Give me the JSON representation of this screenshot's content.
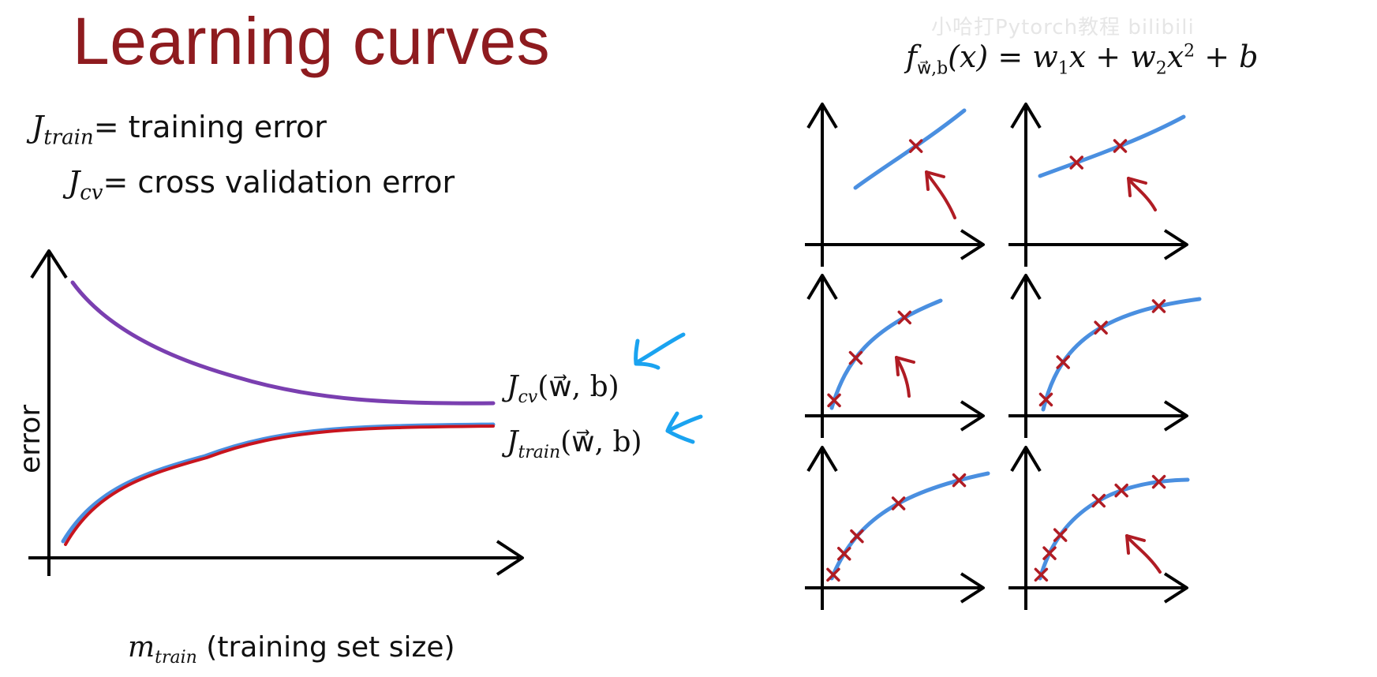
{
  "title": "Learning curves",
  "definitions": {
    "train_symbol": "J",
    "train_sub": "train",
    "train_text": "= training error",
    "cv_symbol": "J",
    "cv_sub": "cv",
    "cv_text": "= cross validation error"
  },
  "axes": {
    "y_label": "error",
    "x_symbol": "m",
    "x_sub": "train",
    "x_text": "(training set size)"
  },
  "curve_labels": {
    "cv_sub": "cv",
    "cv_args": "(w⃗, b)",
    "train_sub": "train",
    "train_args": "(w⃗, b)"
  },
  "formula": {
    "lhs_f": "f",
    "lhs_sub": "w⃗,b",
    "text": "(x) = w",
    "w1_sub": "1",
    "mid": "x + w",
    "w2_sub": "2",
    "x2": "x",
    "pow": "2",
    "tail": " + b"
  },
  "watermark": "小哈打Pytorch教程 bilibili",
  "colors": {
    "title": "#8e1b1f",
    "cv_curve": "#7a3fb0",
    "train_curve": "#c8141e",
    "fit_curve": "#4a8fe0",
    "points": "#b01c24",
    "arrows": "#1aa3f0"
  },
  "panels": [
    {
      "points": [
        0.55
      ]
    },
    {
      "points": [
        0.25,
        0.55
      ]
    },
    {
      "points": [
        0.05,
        0.35,
        0.75
      ]
    },
    {
      "points": [
        0.05,
        0.25,
        0.5,
        0.8
      ]
    },
    {
      "points": [
        0.02,
        0.14,
        0.25,
        0.52,
        0.85
      ]
    },
    {
      "points": [
        0.02,
        0.14,
        0.25,
        0.52,
        0.65,
        0.85
      ]
    }
  ]
}
